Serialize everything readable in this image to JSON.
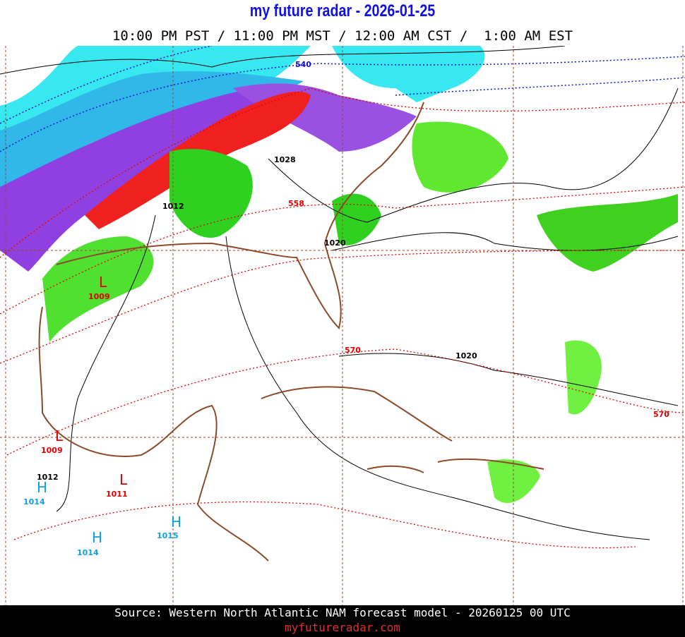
{
  "header": {
    "title": "my future radar - 2026-01-25",
    "subtitle": "10:00 PM PST / 11:00 PM MST / 12:00 AM CST /  1:00 AM EST"
  },
  "map": {
    "labels": [
      "540",
      "1028",
      "1012",
      "558",
      "1020",
      "L",
      "1009",
      "570",
      "1020",
      "570",
      "L",
      "1009",
      "1012",
      "H",
      "1014",
      "L",
      "1011",
      "H",
      "1015",
      "H",
      "1014"
    ]
  },
  "footer": {
    "source": "Source: Western North Atlantic NAM forecast model - 20260125 00 UTC",
    "site": "myfutureradar.com"
  }
}
